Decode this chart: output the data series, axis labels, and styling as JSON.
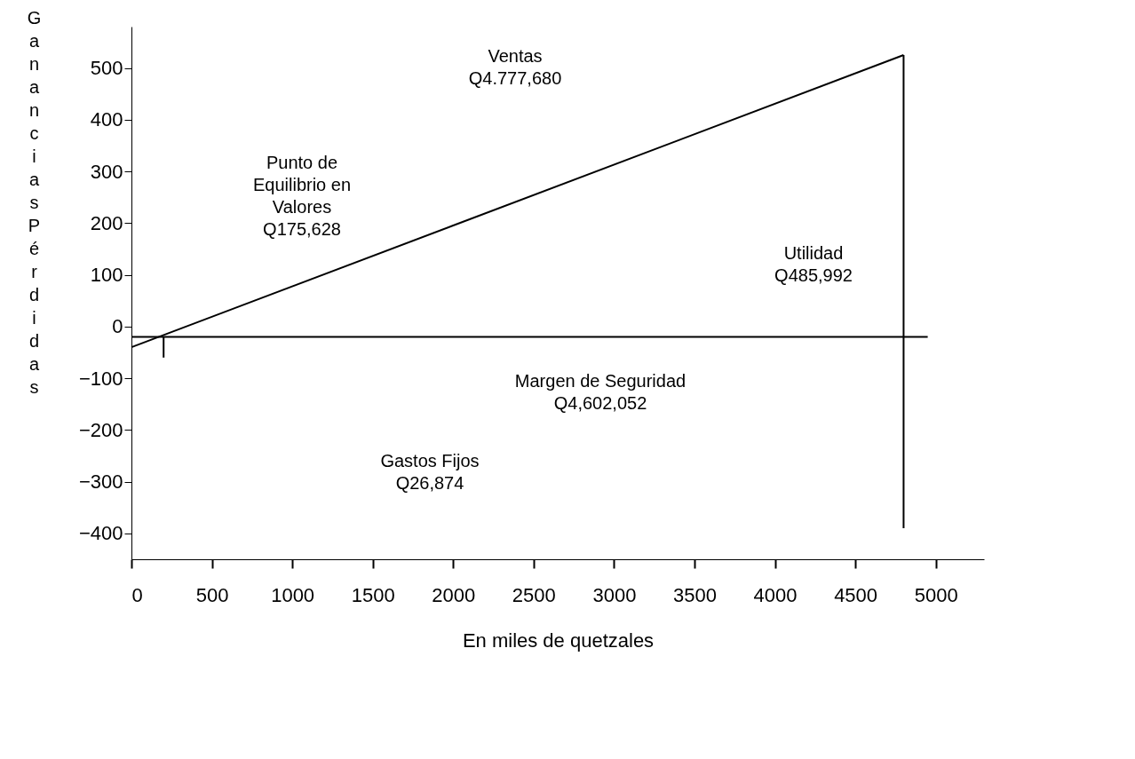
{
  "chart_data": {
    "type": "line",
    "xlabel": "En miles de quetzales",
    "ylabel": "Ganancias  Pérdidas",
    "xlim": [
      0,
      5300
    ],
    "xticks": [
      0,
      500,
      1000,
      1500,
      2000,
      2500,
      3000,
      3500,
      4000,
      4500,
      5000
    ],
    "ylim": [
      -450,
      580
    ],
    "yticks": [
      -400,
      -300,
      -200,
      -100,
      0,
      100,
      200,
      300,
      400,
      500
    ],
    "grid": false,
    "series": [
      {
        "color": "#000000",
        "x": [
          0,
          4800
        ],
        "values": [
          -40,
          525
        ]
      },
      {
        "color": "#000000",
        "x": [
          0,
          4950
        ],
        "values": [
          -20,
          -20
        ]
      },
      {
        "color": "#000000",
        "x": [
          4800,
          4800
        ],
        "values": [
          525,
          -390
        ]
      },
      {
        "color": "#000000",
        "x": [
          200,
          200
        ],
        "values": [
          -20,
          -60
        ]
      }
    ],
    "annotations": [
      "Ventas\nQ4.777,680",
      "Punto de\nEquilibrio en\nValores\nQ175,628",
      "Utilidad\nQ485,992",
      "Margen de Seguridad\nQ4,602,052",
      "Gastos Fijos\nQ26,874"
    ]
  }
}
